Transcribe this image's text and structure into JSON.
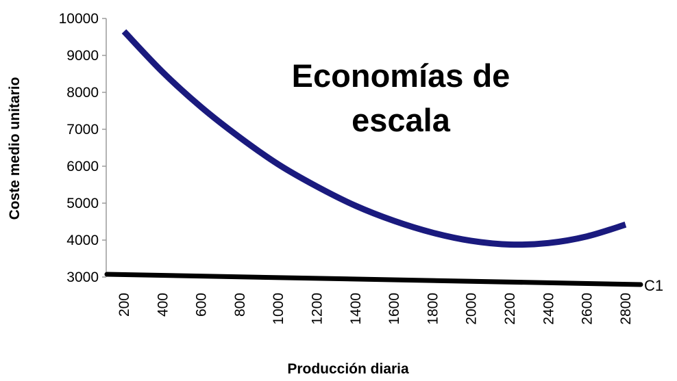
{
  "chart_data": {
    "type": "line",
    "title_lines": [
      "Economías de",
      "escala"
    ],
    "xlabel": "Producción diaria",
    "ylabel": "Coste medio unitario",
    "categories": [
      "200",
      "400",
      "600",
      "800",
      "1000",
      "1200",
      "1400",
      "1600",
      "1800",
      "2000",
      "2200",
      "2400",
      "2600",
      "2800"
    ],
    "series": [
      {
        "name": "",
        "color": "#1a1a7e",
        "values": [
          9650,
          8550,
          7600,
          6780,
          6050,
          5450,
          4930,
          4520,
          4200,
          3980,
          3880,
          3920,
          4100,
          4420
        ]
      }
    ],
    "floor_label": "C1",
    "floor_color": "#000000",
    "y_ticks": [
      "10000",
      "9000",
      "8000",
      "7000",
      "6000",
      "5000",
      "4000",
      "3000"
    ],
    "ylim": [
      3000,
      10000
    ],
    "grid": false,
    "legend": "none"
  }
}
